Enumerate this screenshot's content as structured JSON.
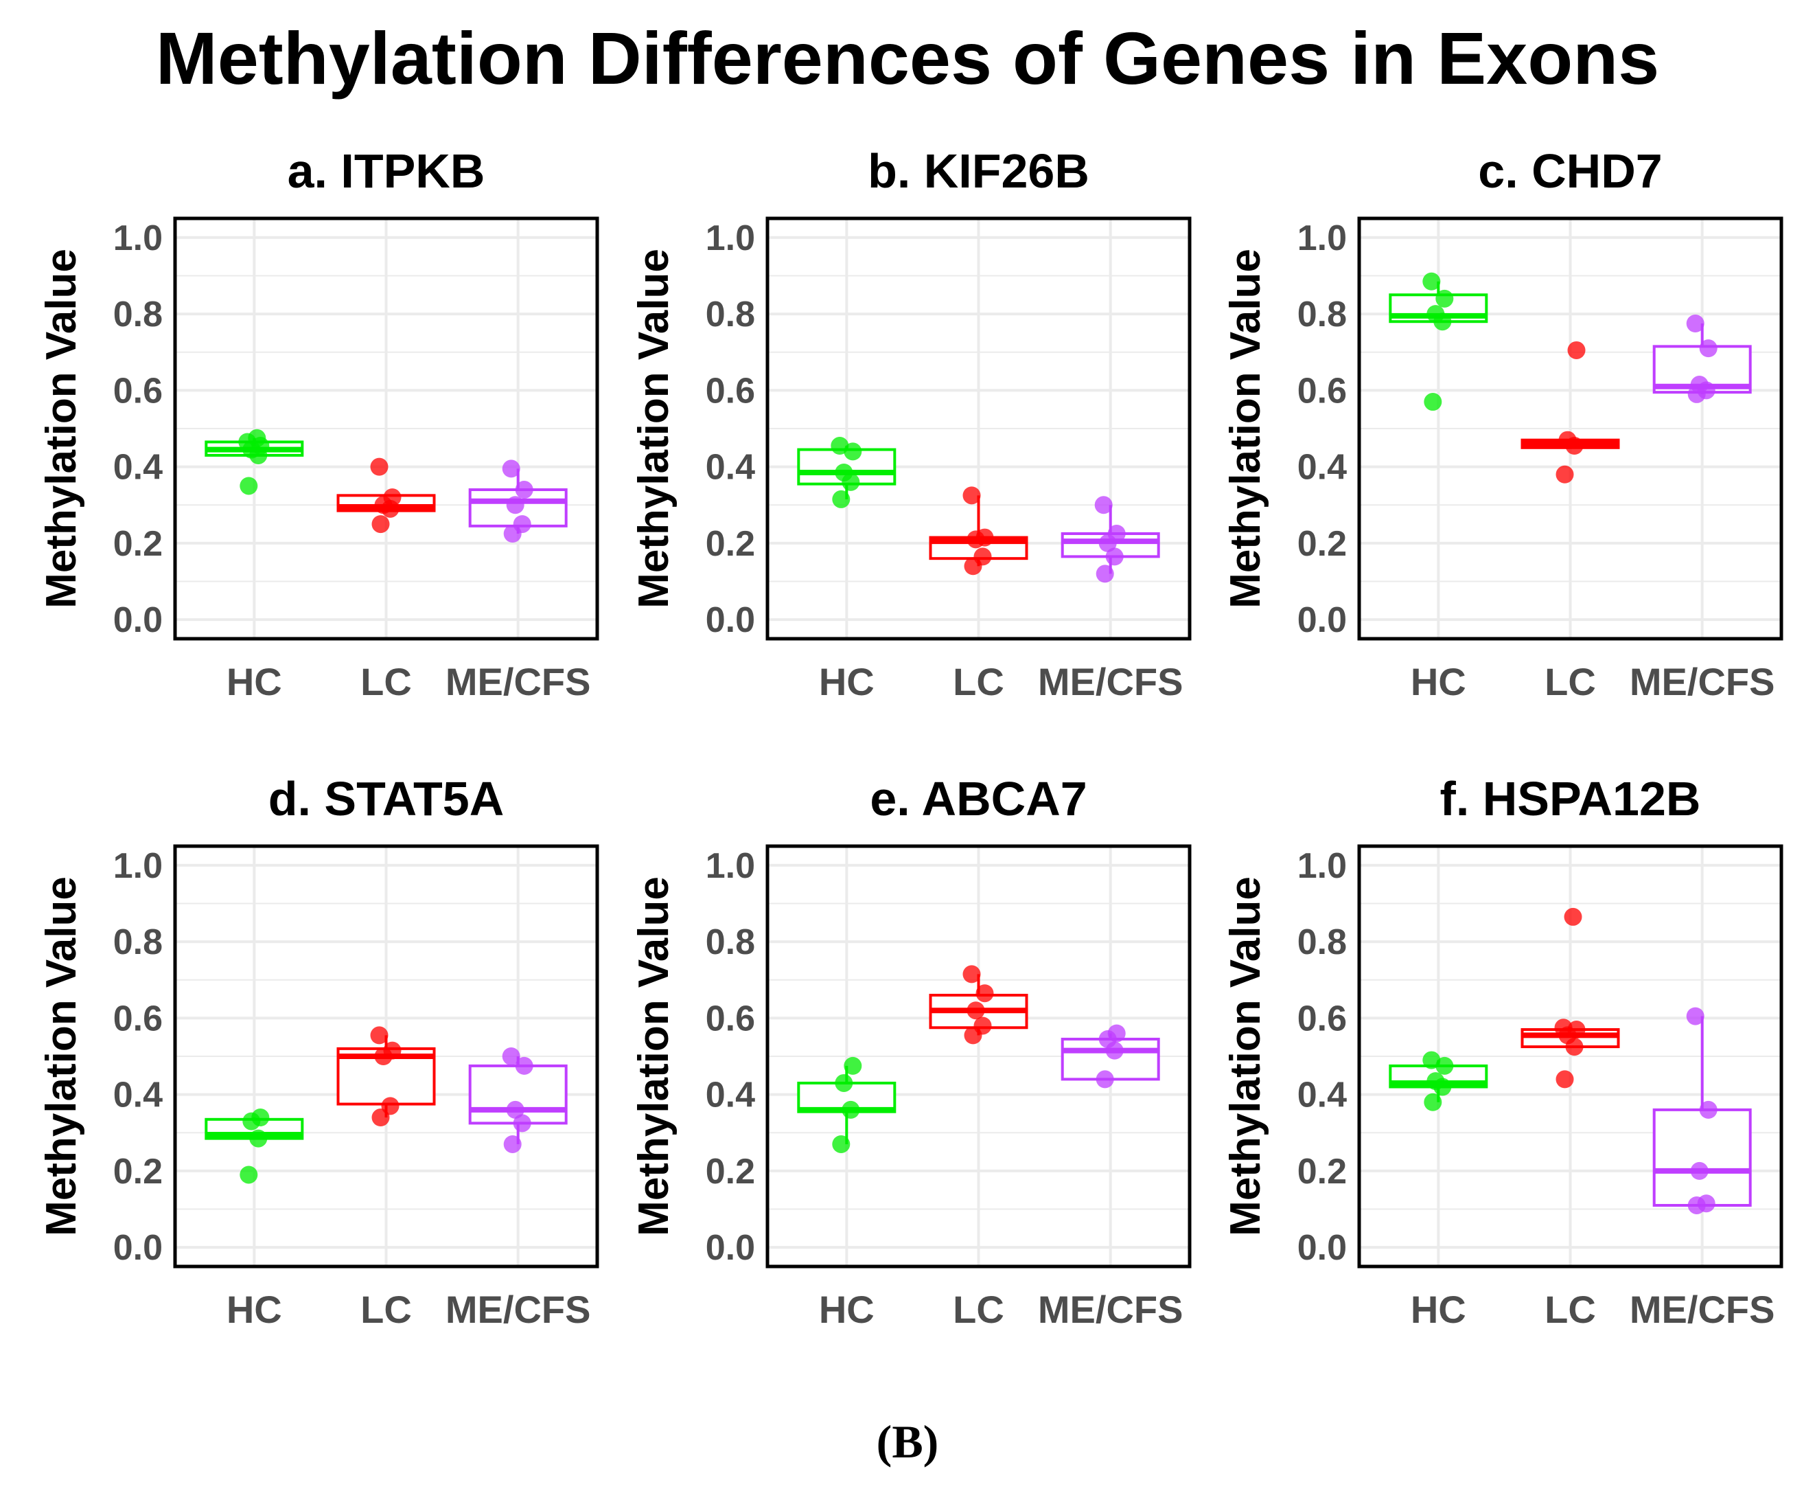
{
  "figure": {
    "title": "Methylation Differences of Genes in Exons",
    "caption": "(B)"
  },
  "colors": {
    "HC": "#00ee00",
    "LC": "#ff0000",
    "ME/CFS": "#bf3eff",
    "grid": "#ebebeb",
    "axis_text": "#4d4d4d",
    "frame": "#000000"
  },
  "chart_data": [
    {
      "type": "box",
      "title": "a. ITPKB",
      "ylabel": "Methylation Value",
      "ylim": [
        0,
        1
      ],
      "yticks": [
        "0.0",
        "0.2",
        "0.4",
        "0.6",
        "0.8",
        "1.0"
      ],
      "categories": [
        "HC",
        "LC",
        "ME/CFS"
      ],
      "groups": [
        {
          "name": "HC",
          "q1": 0.43,
          "median": 0.445,
          "q3": 0.465,
          "whisker_low": 0.43,
          "whisker_high": 0.475,
          "points": [
            0.35,
            0.43,
            0.445,
            0.455,
            0.465,
            0.475
          ]
        },
        {
          "name": "LC",
          "q1": 0.285,
          "median": 0.295,
          "q3": 0.325,
          "whisker_low": 0.285,
          "whisker_high": 0.325,
          "points": [
            0.25,
            0.29,
            0.3,
            0.32,
            0.4
          ]
        },
        {
          "name": "ME/CFS",
          "q1": 0.245,
          "median": 0.31,
          "q3": 0.34,
          "whisker_low": 0.225,
          "whisker_high": 0.395,
          "points": [
            0.225,
            0.25,
            0.3,
            0.34,
            0.395
          ]
        }
      ]
    },
    {
      "type": "box",
      "title": "b. KIF26B",
      "ylabel": "Methylation Value",
      "ylim": [
        0,
        1
      ],
      "yticks": [
        "0.0",
        "0.2",
        "0.4",
        "0.6",
        "0.8",
        "1.0"
      ],
      "categories": [
        "HC",
        "LC",
        "ME/CFS"
      ],
      "groups": [
        {
          "name": "HC",
          "q1": 0.355,
          "median": 0.385,
          "q3": 0.445,
          "whisker_low": 0.315,
          "whisker_high": 0.455,
          "points": [
            0.315,
            0.36,
            0.385,
            0.44,
            0.455
          ]
        },
        {
          "name": "LC",
          "q1": 0.16,
          "median": 0.205,
          "q3": 0.215,
          "whisker_low": 0.14,
          "whisker_high": 0.325,
          "points": [
            0.14,
            0.165,
            0.21,
            0.215,
            0.325
          ]
        },
        {
          "name": "ME/CFS",
          "q1": 0.165,
          "median": 0.205,
          "q3": 0.225,
          "whisker_low": 0.12,
          "whisker_high": 0.3,
          "points": [
            0.12,
            0.165,
            0.2,
            0.225,
            0.3
          ]
        }
      ]
    },
    {
      "type": "box",
      "title": "c. CHD7",
      "ylabel": "Methylation Value",
      "ylim": [
        0,
        1
      ],
      "yticks": [
        "0.0",
        "0.2",
        "0.4",
        "0.6",
        "0.8",
        "1.0"
      ],
      "categories": [
        "HC",
        "LC",
        "ME/CFS"
      ],
      "groups": [
        {
          "name": "HC",
          "q1": 0.78,
          "median": 0.795,
          "q3": 0.85,
          "whisker_low": 0.78,
          "whisker_high": 0.885,
          "points": [
            0.57,
            0.78,
            0.8,
            0.84,
            0.885
          ]
        },
        {
          "name": "LC",
          "q1": 0.45,
          "median": 0.46,
          "q3": 0.47,
          "whisker_low": 0.45,
          "whisker_high": 0.47,
          "points": [
            0.38,
            0.455,
            0.47,
            0.705
          ]
        },
        {
          "name": "ME/CFS",
          "q1": 0.595,
          "median": 0.61,
          "q3": 0.715,
          "whisker_low": 0.59,
          "whisker_high": 0.775,
          "points": [
            0.59,
            0.6,
            0.615,
            0.71,
            0.775
          ]
        }
      ]
    },
    {
      "type": "box",
      "title": "d. STAT5A",
      "ylabel": "Methylation Value",
      "ylim": [
        0,
        1
      ],
      "yticks": [
        "0.0",
        "0.2",
        "0.4",
        "0.6",
        "0.8",
        "1.0"
      ],
      "categories": [
        "HC",
        "LC",
        "ME/CFS"
      ],
      "groups": [
        {
          "name": "HC",
          "q1": 0.285,
          "median": 0.295,
          "q3": 0.335,
          "whisker_low": 0.285,
          "whisker_high": 0.34,
          "points": [
            0.19,
            0.285,
            0.33,
            0.34
          ]
        },
        {
          "name": "LC",
          "q1": 0.375,
          "median": 0.5,
          "q3": 0.52,
          "whisker_low": 0.34,
          "whisker_high": 0.555,
          "points": [
            0.34,
            0.37,
            0.5,
            0.515,
            0.555
          ]
        },
        {
          "name": "ME/CFS",
          "q1": 0.325,
          "median": 0.36,
          "q3": 0.475,
          "whisker_low": 0.27,
          "whisker_high": 0.5,
          "points": [
            0.27,
            0.325,
            0.36,
            0.475,
            0.5
          ]
        }
      ]
    },
    {
      "type": "box",
      "title": "e. ABCA7",
      "ylabel": "Methylation Value",
      "ylim": [
        0,
        1
      ],
      "yticks": [
        "0.0",
        "0.2",
        "0.4",
        "0.6",
        "0.8",
        "1.0"
      ],
      "categories": [
        "HC",
        "LC",
        "ME/CFS"
      ],
      "groups": [
        {
          "name": "HC",
          "q1": 0.355,
          "median": 0.36,
          "q3": 0.43,
          "whisker_low": 0.27,
          "whisker_high": 0.475,
          "points": [
            0.27,
            0.36,
            0.43,
            0.475
          ]
        },
        {
          "name": "LC",
          "q1": 0.575,
          "median": 0.62,
          "q3": 0.66,
          "whisker_low": 0.555,
          "whisker_high": 0.715,
          "points": [
            0.555,
            0.58,
            0.62,
            0.665,
            0.715
          ]
        },
        {
          "name": "ME/CFS",
          "q1": 0.44,
          "median": 0.515,
          "q3": 0.545,
          "whisker_low": 0.44,
          "whisker_high": 0.56,
          "points": [
            0.44,
            0.515,
            0.545,
            0.56
          ]
        }
      ]
    },
    {
      "type": "box",
      "title": "f. HSPA12B",
      "ylabel": "Methylation Value",
      "ylim": [
        0,
        1
      ],
      "yticks": [
        "0.0",
        "0.2",
        "0.4",
        "0.6",
        "0.8",
        "1.0"
      ],
      "categories": [
        "HC",
        "LC",
        "ME/CFS"
      ],
      "groups": [
        {
          "name": "HC",
          "q1": 0.42,
          "median": 0.43,
          "q3": 0.475,
          "whisker_low": 0.38,
          "whisker_high": 0.49,
          "points": [
            0.38,
            0.42,
            0.435,
            0.475,
            0.49
          ]
        },
        {
          "name": "LC",
          "q1": 0.525,
          "median": 0.555,
          "q3": 0.57,
          "whisker_low": 0.525,
          "whisker_high": 0.575,
          "points": [
            0.44,
            0.525,
            0.555,
            0.57,
            0.575,
            0.865
          ]
        },
        {
          "name": "ME/CFS",
          "q1": 0.11,
          "median": 0.2,
          "q3": 0.36,
          "whisker_low": 0.11,
          "whisker_high": 0.605,
          "points": [
            0.11,
            0.115,
            0.2,
            0.36,
            0.605
          ]
        }
      ]
    }
  ]
}
